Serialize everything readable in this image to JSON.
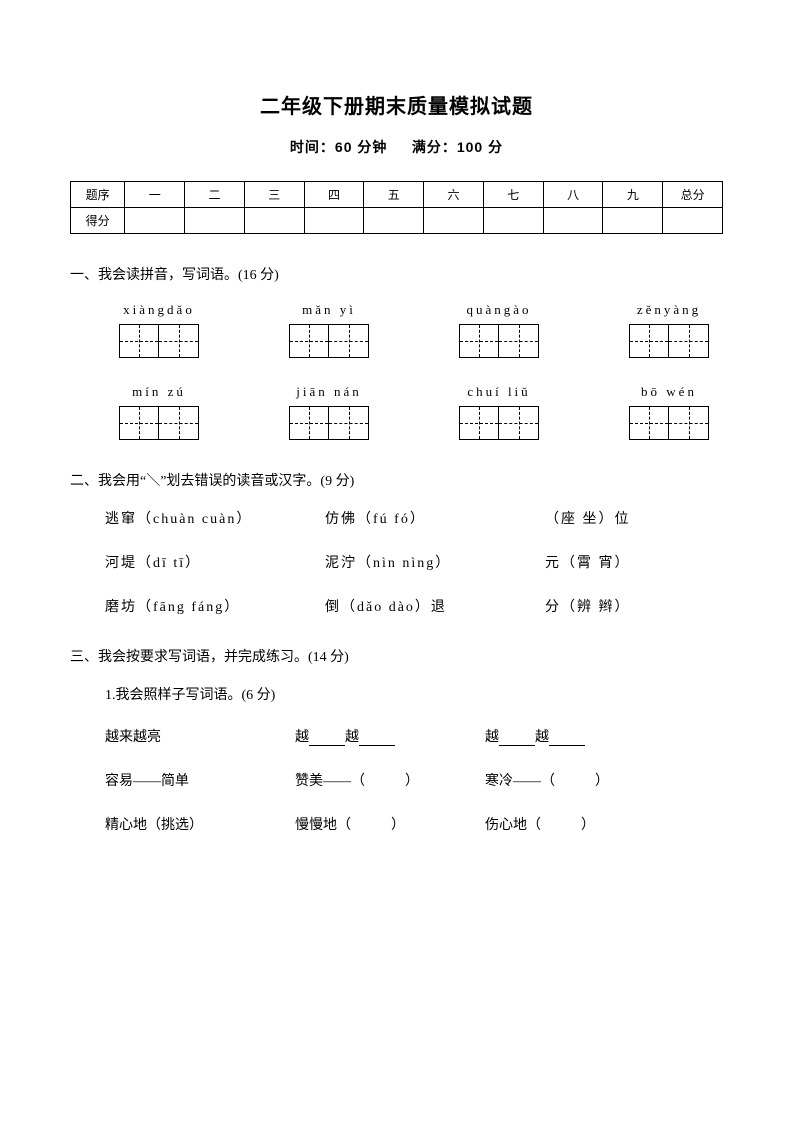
{
  "title": "二年级下册期末质量模拟试题",
  "subtitle_time": "时间：60 分钟",
  "subtitle_score": "满分：100 分",
  "score_table": {
    "row1_label": "题序",
    "row2_label": "得分",
    "cols": [
      "一",
      "二",
      "三",
      "四",
      "五",
      "六",
      "七",
      "八",
      "九",
      "总分"
    ]
  },
  "section1": {
    "heading": "一、我会读拼音，写词语。(16 分)",
    "row1": [
      "xiàngdǎo",
      "mǎn yì",
      "quàngào",
      "zěnyàng"
    ],
    "row2": [
      "mín zú",
      "jiān nán",
      "chuí liǔ",
      "bō  wén"
    ]
  },
  "section2": {
    "heading": "二、我会用“＼”划去错误的读音或汉字。(9 分)",
    "rows": [
      {
        "c1": "逃窜（chuàn cuàn）",
        "c2": "仿佛（fú fó）",
        "c3": "（座 坐）位"
      },
      {
        "c1": "河堤（dī tī）",
        "c2": "泥泞（nìn nìng）",
        "c3": "元（霄 宵）"
      },
      {
        "c1": "磨坊（fāng fáng）",
        "c2": "倒（dǎo dào）退",
        "c3": "分（辨 辫）"
      }
    ]
  },
  "section3": {
    "heading": "三、我会按要求写词语，并完成练习。(14 分)",
    "sub1": "1.我会照样子写词语。(6 分)",
    "row1": {
      "c1": "越来越亮",
      "c2a": "越",
      "c2b": "越",
      "c3a": "越",
      "c3b": "越"
    },
    "row2": {
      "c1": "容易——简单",
      "c2": "赞美——（",
      "c2end": "）",
      "c3": "寒冷——（",
      "c3end": "）"
    },
    "row3": {
      "c1": "精心地（挑选）",
      "c2": "慢慢地（",
      "c2end": "）",
      "c3": "伤心地（",
      "c3end": "）"
    }
  }
}
